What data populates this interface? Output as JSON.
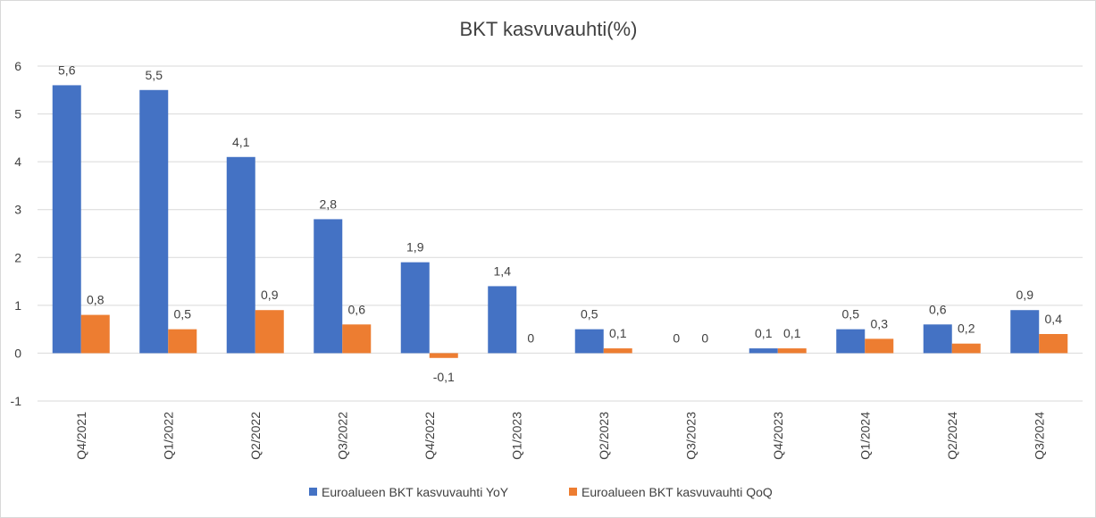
{
  "chart_data": {
    "type": "bar",
    "title": "BKT kasvuvauhti(%)",
    "xlabel": "",
    "ylabel": "",
    "ylim": [
      -1,
      6
    ],
    "yticks": [
      -1,
      0,
      1,
      2,
      3,
      4,
      5,
      6
    ],
    "grid": true,
    "legend_position": "bottom",
    "categories": [
      "Q4/2021",
      "Q1/2022",
      "Q2/2022",
      "Q3/2022",
      "Q4/2022",
      "Q1/2023",
      "Q2/2023",
      "Q3/2023",
      "Q4/2023",
      "Q1/2024",
      "Q2/2024",
      "Q3/2024"
    ],
    "series": [
      {
        "name": "Euroalueen BKT kasvuvauhti YoY",
        "color": "#4472c4",
        "values": [
          5.6,
          5.5,
          4.1,
          2.8,
          1.9,
          1.4,
          0.5,
          0,
          0.1,
          0.5,
          0.6,
          0.9
        ],
        "labels": [
          "5,6",
          "5,5",
          "4,1",
          "2,8",
          "1,9",
          "1,4",
          "0,5",
          "0",
          "0,1",
          "0,5",
          "0,6",
          "0,9"
        ]
      },
      {
        "name": "Euroalueen BKT kasvuvauhti QoQ",
        "color": "#ed7d31",
        "values": [
          0.8,
          0.5,
          0.9,
          0.6,
          -0.1,
          0,
          0.1,
          0,
          0.1,
          0.3,
          0.2,
          0.4
        ],
        "labels": [
          "0,8",
          "0,5",
          "0,9",
          "0,6",
          "-0,1",
          "0",
          "0,1",
          "0",
          "0,1",
          "0,3",
          "0,2",
          "0,4"
        ]
      }
    ]
  }
}
